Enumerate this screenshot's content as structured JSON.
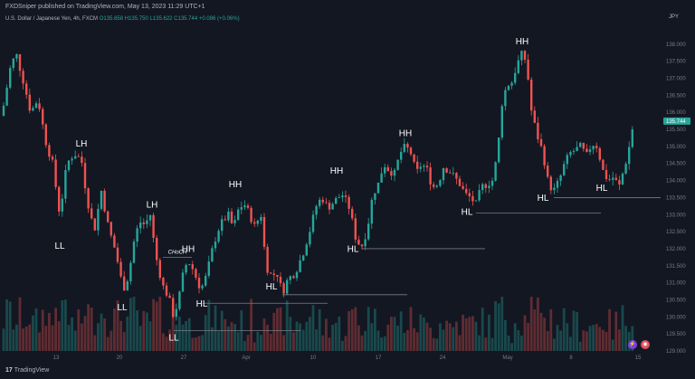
{
  "header": {
    "publisher_line": "FXDSniper published on TradingView.com, May 13, 2023 11:29 UTC+1",
    "symbol": "U.S. Dollar / Japanese Yen, 4h, FXCM",
    "open": "O135.658",
    "high": "H135.750",
    "low": "L135.622",
    "close": "C135.744",
    "change": "+0.086 (+0.06%)"
  },
  "currency": "JPY",
  "footer": {
    "brand_mark": "17",
    "brand_name": "TradingView"
  },
  "colors": {
    "up": "#26a69a",
    "down": "#ef5350",
    "background": "#131722",
    "text": "#b2b5be",
    "line": "#787b86"
  },
  "chart_data": {
    "type": "candlestick",
    "title": "U.S. Dollar / Japanese Yen, 4h, FXCM",
    "price_axis": {
      "min": 129.0,
      "max": 138.5,
      "ticks": [
        "138.000",
        "137.500",
        "137.000",
        "136.500",
        "136.000",
        "135.500",
        "135.000",
        "134.500",
        "134.000",
        "133.500",
        "133.000",
        "132.500",
        "132.000",
        "131.500",
        "131.000",
        "130.500",
        "130.000",
        "129.500",
        "129.000"
      ],
      "last_price_label": "135.744",
      "last_price": 135.744
    },
    "time_axis": {
      "ticks": [
        "13",
        "20",
        "27",
        "Apr",
        "10",
        "17",
        "24",
        "May",
        "8",
        "15"
      ]
    },
    "path_points": [
      [
        2,
        135.9
      ],
      [
        12,
        137.4
      ],
      [
        18,
        137.7
      ],
      [
        26,
        136.9
      ],
      [
        34,
        136.0
      ],
      [
        42,
        136.4
      ],
      [
        50,
        135.2
      ],
      [
        58,
        134.5
      ],
      [
        66,
        133.0
      ],
      [
        74,
        134.5
      ],
      [
        82,
        134.8
      ],
      [
        90,
        134.6
      ],
      [
        96,
        133.5
      ],
      [
        104,
        132.5
      ],
      [
        112,
        133.7
      ],
      [
        120,
        132.6
      ],
      [
        128,
        131.9
      ],
      [
        136,
        130.8
      ],
      [
        142,
        131.2
      ],
      [
        148,
        132.2
      ],
      [
        154,
        132.8
      ],
      [
        160,
        132.7
      ],
      [
        166,
        133.0
      ],
      [
        172,
        131.8
      ],
      [
        180,
        130.9
      ],
      [
        186,
        130.6
      ],
      [
        192,
        130.0
      ],
      [
        198,
        130.6
      ],
      [
        204,
        131.5
      ],
      [
        210,
        131.6
      ],
      [
        216,
        131.2
      ],
      [
        222,
        130.8
      ],
      [
        228,
        131.2
      ],
      [
        234,
        131.9
      ],
      [
        240,
        132.5
      ],
      [
        246,
        132.8
      ],
      [
        252,
        133.0
      ],
      [
        258,
        132.6
      ],
      [
        264,
        133.2
      ],
      [
        270,
        133.3
      ],
      [
        276,
        133.0
      ],
      [
        282,
        132.6
      ],
      [
        288,
        133.1
      ],
      [
        294,
        131.5
      ],
      [
        300,
        131.2
      ],
      [
        306,
        131.3
      ],
      [
        312,
        130.7
      ],
      [
        318,
        131.1
      ],
      [
        326,
        131.3
      ],
      [
        334,
        131.8
      ],
      [
        342,
        132.5
      ],
      [
        350,
        133.3
      ],
      [
        356,
        133.5
      ],
      [
        362,
        133.2
      ],
      [
        370,
        133.4
      ],
      [
        378,
        133.6
      ],
      [
        386,
        133.2
      ],
      [
        394,
        132.2
      ],
      [
        400,
        132.1
      ],
      [
        406,
        132.6
      ],
      [
        412,
        133.6
      ],
      [
        418,
        133.9
      ],
      [
        424,
        134.5
      ],
      [
        430,
        134.3
      ],
      [
        436,
        134.2
      ],
      [
        442,
        134.8
      ],
      [
        448,
        135.0
      ],
      [
        454,
        134.8
      ],
      [
        460,
        134.2
      ],
      [
        466,
        134.5
      ],
      [
        472,
        134.3
      ],
      [
        478,
        133.8
      ],
      [
        484,
        133.9
      ],
      [
        490,
        134.4
      ],
      [
        496,
        134.3
      ],
      [
        502,
        134.1
      ],
      [
        508,
        133.9
      ],
      [
        514,
        133.6
      ],
      [
        520,
        133.5
      ],
      [
        526,
        133.3
      ],
      [
        532,
        133.8
      ],
      [
        538,
        133.9
      ],
      [
        544,
        134.0
      ],
      [
        550,
        134.8
      ],
      [
        554,
        136.2
      ],
      [
        560,
        136.8
      ],
      [
        566,
        136.9
      ],
      [
        570,
        137.3
      ],
      [
        576,
        137.7
      ],
      [
        582,
        137.5
      ],
      [
        586,
        136.2
      ],
      [
        590,
        135.7
      ],
      [
        594,
        135.3
      ],
      [
        600,
        134.8
      ],
      [
        606,
        133.9
      ],
      [
        612,
        133.7
      ],
      [
        618,
        134.0
      ],
      [
        624,
        134.5
      ],
      [
        630,
        134.8
      ],
      [
        636,
        134.9
      ],
      [
        642,
        135.0
      ],
      [
        648,
        134.7
      ],
      [
        654,
        135.1
      ],
      [
        660,
        135.0
      ],
      [
        666,
        134.3
      ],
      [
        672,
        134.0
      ],
      [
        678,
        134.1
      ],
      [
        684,
        133.8
      ],
      [
        688,
        134.2
      ],
      [
        694,
        134.8
      ],
      [
        700,
        135.7
      ]
    ],
    "annotations": [
      {
        "label": "LH",
        "x": 90,
        "y": 135.0
      },
      {
        "label": "LL",
        "x": 66,
        "y": 132.0
      },
      {
        "label": "LH",
        "x": 168,
        "y": 133.2
      },
      {
        "label": "LL",
        "x": 135,
        "y": 130.2
      },
      {
        "label": "HH",
        "x": 208,
        "y": 131.9
      },
      {
        "label": "LL",
        "x": 192,
        "y": 129.3
      },
      {
        "label": "HL",
        "x": 223,
        "y": 130.3
      },
      {
        "label": "HH",
        "x": 260,
        "y": 133.8
      },
      {
        "label": "HL",
        "x": 300,
        "y": 130.8
      },
      {
        "label": "HH",
        "x": 372,
        "y": 134.2
      },
      {
        "label": "HL",
        "x": 390,
        "y": 131.9
      },
      {
        "label": "HH",
        "x": 448,
        "y": 135.3
      },
      {
        "label": "HL",
        "x": 516,
        "y": 133.0
      },
      {
        "label": "HH",
        "x": 577,
        "y": 138.0
      },
      {
        "label": "HL",
        "x": 600,
        "y": 133.4
      },
      {
        "label": "HL",
        "x": 665,
        "y": 133.7
      }
    ],
    "choch_label": "CHoCH",
    "levels": [
      {
        "price": 129.6,
        "from": 192,
        "to": 332
      },
      {
        "price": 130.4,
        "from": 224,
        "to": 362
      },
      {
        "price": 130.65,
        "from": 312,
        "to": 450
      },
      {
        "price": 132.0,
        "from": 400,
        "to": 536
      },
      {
        "price": 133.05,
        "from": 526,
        "to": 664
      },
      {
        "price": 133.5,
        "from": 612,
        "to": 760
      },
      {
        "price": 131.75,
        "from": 180,
        "to": 212
      }
    ]
  }
}
